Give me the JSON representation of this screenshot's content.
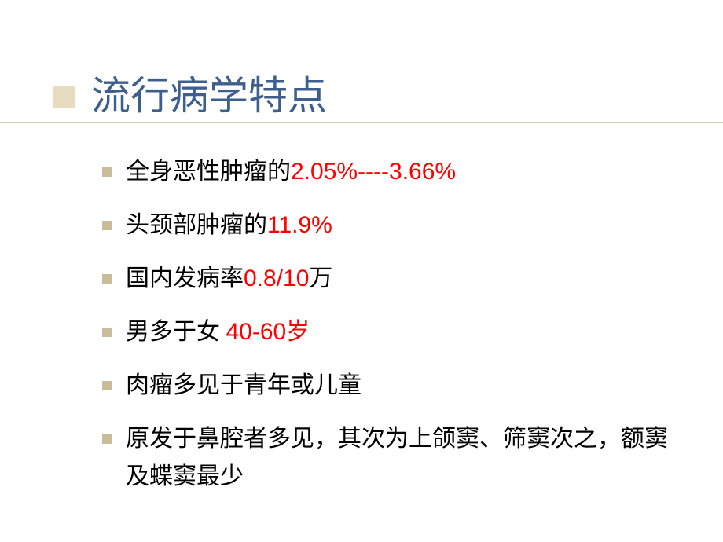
{
  "title": "流行病学特点",
  "bullets": [
    {
      "segments": [
        {
          "text": "全身恶性肿瘤的",
          "class": "bullet-text"
        },
        {
          "text": "2.05%----3.66%",
          "class": "highlight"
        }
      ]
    },
    {
      "segments": [
        {
          "text": "头颈部肿瘤的",
          "class": "bullet-text"
        },
        {
          "text": "11.9%",
          "class": "highlight"
        }
      ]
    },
    {
      "segments": [
        {
          "text": "国内发病率",
          "class": "bullet-text"
        },
        {
          "text": "0.8/10",
          "class": "highlight"
        },
        {
          "text": "万",
          "class": "bullet-text"
        }
      ]
    },
    {
      "segments": [
        {
          "text": "男多于女  ",
          "class": "bullet-text"
        },
        {
          "text": "40-60",
          "class": "highlight"
        },
        {
          "text": "岁",
          "class": "highlight-cn"
        }
      ]
    },
    {
      "segments": [
        {
          "text": "肉瘤多见于青年或儿童",
          "class": "bullet-text"
        }
      ]
    },
    {
      "segments": [
        {
          "text": "原发于鼻腔者多见，其次为上颌窦、筛窦次之，额窦及蝶窦最少",
          "class": "bullet-text"
        }
      ]
    }
  ],
  "colors": {
    "title_color": "#3c5f8d",
    "highlight_color": "#ff0000",
    "text_color": "#000000",
    "square_color": "#e8dcc0",
    "bullet_square_color": "#c9bd99",
    "underline_color": "#d9ceb0",
    "background": "#ffffff"
  }
}
